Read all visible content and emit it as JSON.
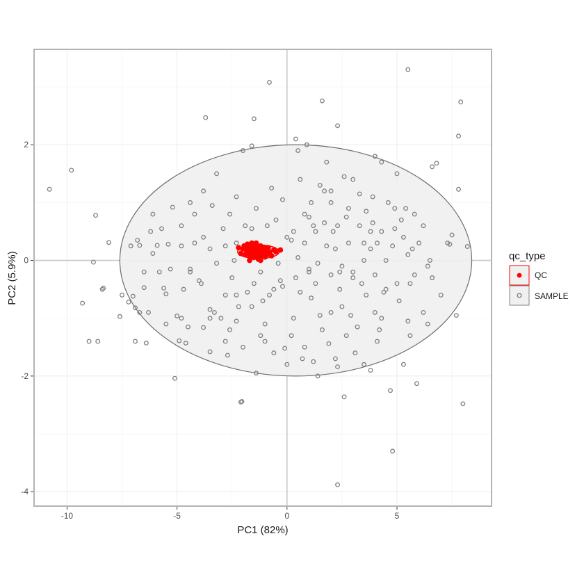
{
  "chart_data": {
    "type": "scatter",
    "xlabel": "PC1 (82%)",
    "ylabel": "PC2 (5.9%)",
    "xlim": [
      -11.5,
      9.3
    ],
    "ylim": [
      -4.25,
      3.65
    ],
    "x_ticks": [
      -10,
      -5,
      0,
      5
    ],
    "y_ticks": [
      -4,
      -2,
      0,
      2
    ],
    "grid": true,
    "legend_title": "qc_type",
    "legend_position": "right",
    "colors": {
      "qc": "#ff0000",
      "sample": "#808080",
      "ellipse_fill": "#f0f0f0",
      "ellipse_stroke": "#6e6e6e",
      "zero_line": "#c8c8c8"
    },
    "ellipses": [
      {
        "group": "SAMPLE",
        "cx": 0.4,
        "cy": 0.0,
        "rx": 8.0,
        "ry": 2.0
      },
      {
        "group": "QC",
        "cx": -1.3,
        "cy": 0.15,
        "rx": 0.95,
        "ry": 0.12
      }
    ],
    "series": [
      {
        "name": "QC",
        "points": [
          [
            -2.2,
            0.22
          ],
          [
            -2.1,
            0.12
          ],
          [
            -2.0,
            0.2
          ],
          [
            -1.95,
            0.25
          ],
          [
            -1.9,
            0.1
          ],
          [
            -1.85,
            0.18
          ],
          [
            -1.8,
            0.15
          ],
          [
            -1.75,
            0.24
          ],
          [
            -1.7,
            0.08
          ],
          [
            -1.65,
            0.2
          ],
          [
            -1.6,
            0.12
          ],
          [
            -1.55,
            0.26
          ],
          [
            -1.5,
            0.18
          ],
          [
            -1.5,
            0.05
          ],
          [
            -1.45,
            0.14
          ],
          [
            -1.4,
            0.22
          ],
          [
            -1.35,
            0.1
          ],
          [
            -1.3,
            0.2
          ],
          [
            -1.3,
            0.02
          ],
          [
            -1.25,
            0.16
          ],
          [
            -1.2,
            0.25
          ],
          [
            -1.2,
            0.08
          ],
          [
            -1.15,
            0.18
          ],
          [
            -1.1,
            0.12
          ],
          [
            -1.05,
            0.22
          ],
          [
            -1.0,
            0.06
          ],
          [
            -1.0,
            0.2
          ],
          [
            -0.95,
            0.15
          ],
          [
            -0.9,
            0.1
          ],
          [
            -0.85,
            0.22
          ],
          [
            -0.8,
            0.14
          ],
          [
            -0.7,
            0.08
          ],
          [
            -0.6,
            0.18
          ],
          [
            -0.5,
            0.15
          ],
          [
            -1.6,
            0.3
          ],
          [
            -1.4,
            0.3
          ],
          [
            -1.7,
            0.0
          ],
          [
            -1.2,
            0.0
          ],
          [
            -1.8,
            0.28
          ],
          [
            -0.3,
            0.18
          ]
        ]
      },
      {
        "name": "SAMPLE",
        "points": [
          [
            -10.8,
            1.23
          ],
          [
            -9.8,
            1.56
          ],
          [
            -8.7,
            0.78
          ],
          [
            -8.4,
            -0.5
          ],
          [
            -8.35,
            -0.48
          ],
          [
            -9.3,
            -0.74
          ],
          [
            -8.6,
            -1.4
          ],
          [
            -8.1,
            0.31
          ],
          [
            -8.8,
            -0.03
          ],
          [
            -7.6,
            -0.97
          ],
          [
            -7.5,
            -0.6
          ],
          [
            -7.2,
            -0.72
          ],
          [
            -7.0,
            -0.62
          ],
          [
            -6.9,
            -0.82
          ],
          [
            -6.9,
            -1.4
          ],
          [
            -6.8,
            0.35
          ],
          [
            -6.7,
            0.26
          ],
          [
            -6.5,
            -0.47
          ],
          [
            -6.4,
            -1.43
          ],
          [
            -6.3,
            -0.9
          ],
          [
            -6.1,
            0.12
          ],
          [
            -5.9,
            0.26
          ],
          [
            -5.7,
            0.55
          ],
          [
            -5.6,
            -0.48
          ],
          [
            -5.5,
            -0.58
          ],
          [
            -5.4,
            0.28
          ],
          [
            -5.2,
            0.92
          ],
          [
            -5.1,
            -2.04
          ],
          [
            -5.0,
            -0.96
          ],
          [
            -4.9,
            -1.39
          ],
          [
            -4.8,
            -1.0
          ],
          [
            -4.7,
            -0.5
          ],
          [
            -4.6,
            -1.43
          ],
          [
            -4.4,
            -0.15
          ],
          [
            -4.2,
            0.3
          ],
          [
            -4.0,
            -0.35
          ],
          [
            -3.8,
            -1.16
          ],
          [
            -3.7,
            2.47
          ],
          [
            -3.5,
            -1.58
          ],
          [
            -3.3,
            -0.9
          ],
          [
            -3.0,
            -1.0
          ],
          [
            -2.8,
            -1.4
          ],
          [
            -2.7,
            -1.64
          ],
          [
            -2.6,
            0.8
          ],
          [
            -2.3,
            -0.6
          ],
          [
            -2.2,
            -0.8
          ],
          [
            -2.1,
            -2.45
          ],
          [
            -2.05,
            -2.44
          ],
          [
            -1.8,
            0.28
          ],
          [
            -1.6,
            -0.8
          ],
          [
            -1.5,
            2.45
          ],
          [
            -1.6,
            1.98
          ],
          [
            -1.4,
            -1.95
          ],
          [
            -1.2,
            -0.2
          ],
          [
            -1.1,
            -0.7
          ],
          [
            -1.0,
            -1.4
          ],
          [
            -0.8,
            3.08
          ],
          [
            -0.6,
            -0.5
          ],
          [
            -0.3,
            -0.35
          ],
          [
            -0.1,
            -1.52
          ],
          [
            0.0,
            -1.8
          ],
          [
            0.2,
            0.35
          ],
          [
            0.4,
            2.1
          ],
          [
            0.6,
            -0.55
          ],
          [
            0.8,
            -1.5
          ],
          [
            1.0,
            -0.2
          ],
          [
            1.1,
            -0.65
          ],
          [
            1.2,
            -1.75
          ],
          [
            1.2,
            0.6
          ],
          [
            1.4,
            -2.0
          ],
          [
            1.6,
            2.76
          ],
          [
            1.7,
            1.2
          ],
          [
            1.9,
            -1.44
          ],
          [
            2.0,
            -0.9
          ],
          [
            2.1,
            0.5
          ],
          [
            2.3,
            2.33
          ],
          [
            2.3,
            -1.84
          ],
          [
            2.3,
            -3.88
          ],
          [
            2.5,
            -0.8
          ],
          [
            2.6,
            -2.36
          ],
          [
            2.8,
            0.9
          ],
          [
            3.0,
            -0.3
          ],
          [
            3.2,
            -1.15
          ],
          [
            3.3,
            1.15
          ],
          [
            3.5,
            -1.8
          ],
          [
            3.6,
            -0.6
          ],
          [
            3.8,
            0.5
          ],
          [
            4.0,
            -0.9
          ],
          [
            4.2,
            -1.2
          ],
          [
            4.3,
            1.7
          ],
          [
            4.5,
            -0.5
          ],
          [
            4.7,
            -2.25
          ],
          [
            4.8,
            -3.3
          ],
          [
            5.0,
            -0.4
          ],
          [
            5.2,
            0.7
          ],
          [
            5.3,
            -1.8
          ],
          [
            5.5,
            3.3
          ],
          [
            5.6,
            -0.4
          ],
          [
            5.9,
            -2.13
          ],
          [
            6.0,
            0.3
          ],
          [
            6.2,
            -0.9
          ],
          [
            6.4,
            -0.1
          ],
          [
            6.6,
            1.62
          ],
          [
            6.8,
            1.68
          ],
          [
            7.0,
            -0.6
          ],
          [
            7.3,
            0.3
          ],
          [
            7.5,
            0.44
          ],
          [
            7.7,
            -0.95
          ],
          [
            7.8,
            1.23
          ],
          [
            7.8,
            2.15
          ],
          [
            7.9,
            2.74
          ],
          [
            8.0,
            -2.48
          ],
          [
            8.2,
            0.24
          ],
          [
            7.4,
            0.28
          ],
          [
            -9.0,
            -1.4
          ],
          [
            -6.2,
            0.5
          ],
          [
            -3.2,
            1.5
          ],
          [
            -2.0,
            1.9
          ],
          [
            0.5,
            1.9
          ],
          [
            1.8,
            1.7
          ],
          [
            3.0,
            1.4
          ],
          [
            4.0,
            1.8
          ],
          [
            5.0,
            1.5
          ],
          [
            -5.8,
            -0.2
          ],
          [
            -4.2,
            0.8
          ],
          [
            -3.5,
            -0.85
          ],
          [
            -2.5,
            -0.3
          ],
          [
            -0.5,
            0.7
          ],
          [
            0.8,
            0.8
          ],
          [
            2.2,
            0.2
          ],
          [
            3.5,
            0.3
          ],
          [
            5.5,
            0.1
          ],
          [
            6.5,
            0.0
          ],
          [
            -6.5,
            -0.2
          ],
          [
            -7.1,
            0.25
          ],
          [
            -2.6,
            -1.2
          ],
          [
            -1.2,
            -1.3
          ],
          [
            0.2,
            -1.3
          ],
          [
            1.6,
            -1.2
          ],
          [
            2.7,
            -1.3
          ],
          [
            4.1,
            -1.4
          ],
          [
            5.6,
            -1.3
          ],
          [
            -3.9,
            -0.4
          ],
          [
            -2.8,
            -0.6
          ],
          [
            -1.8,
            -0.55
          ],
          [
            -0.8,
            -0.6
          ],
          [
            0.4,
            -0.3
          ],
          [
            1.3,
            -0.4
          ],
          [
            2.4,
            -0.5
          ],
          [
            3.4,
            -0.4
          ],
          [
            4.4,
            -0.55
          ],
          [
            5.1,
            -0.7
          ],
          [
            -4.8,
            0.6
          ],
          [
            -3.8,
            0.4
          ],
          [
            -2.9,
            0.55
          ],
          [
            -1.9,
            0.6
          ],
          [
            -0.9,
            0.6
          ],
          [
            0.3,
            0.5
          ],
          [
            1.3,
            0.5
          ],
          [
            2.3,
            0.6
          ],
          [
            3.3,
            0.6
          ],
          [
            4.3,
            0.5
          ],
          [
            5.3,
            0.4
          ],
          [
            6.2,
            0.6
          ],
          [
            -6.1,
            0.8
          ],
          [
            -4.4,
            1.0
          ],
          [
            -3.4,
            0.95
          ],
          [
            -1.4,
            0.9
          ],
          [
            -0.2,
            1.05
          ],
          [
            1.1,
            1.0
          ],
          [
            2.0,
            1.2
          ],
          [
            3.6,
            0.85
          ],
          [
            4.6,
            1.0
          ],
          [
            5.8,
            0.8
          ],
          [
            -3.8,
            1.2
          ],
          [
            -2.3,
            1.1
          ],
          [
            -0.7,
            1.25
          ],
          [
            0.6,
            1.4
          ],
          [
            1.5,
            1.3
          ],
          [
            2.6,
            1.45
          ],
          [
            3.9,
            1.1
          ],
          [
            4.9,
            0.9
          ],
          [
            -5.3,
            -0.15
          ],
          [
            -4.4,
            -0.2
          ],
          [
            -3.2,
            -0.05
          ],
          [
            -2.4,
            0.0
          ],
          [
            -0.4,
            -0.05
          ],
          [
            0.5,
            0.05
          ],
          [
            1.4,
            -0.05
          ],
          [
            2.5,
            -0.1
          ],
          [
            3.5,
            0.0
          ],
          [
            4.5,
            0.0
          ],
          [
            5.8,
            -0.25
          ],
          [
            6.6,
            -0.3
          ],
          [
            -6.7,
            -0.9
          ],
          [
            -5.5,
            -1.1
          ],
          [
            -4.5,
            -1.15
          ],
          [
            -3.5,
            -1.0
          ],
          [
            -2.3,
            -1.05
          ],
          [
            -1.0,
            -1.1
          ],
          [
            0.3,
            -1.0
          ],
          [
            1.5,
            -0.95
          ],
          [
            2.9,
            -0.95
          ],
          [
            4.3,
            -1.0
          ],
          [
            5.5,
            -1.05
          ],
          [
            6.4,
            -1.1
          ],
          [
            -2.0,
            -1.5
          ],
          [
            -0.6,
            -1.6
          ],
          [
            0.7,
            -1.7
          ],
          [
            2.2,
            -1.7
          ],
          [
            3.1,
            -1.6
          ],
          [
            3.8,
            -1.9
          ],
          [
            -1.5,
            -0.4
          ],
          [
            -0.2,
            -0.45
          ],
          [
            1.0,
            -0.15
          ],
          [
            2.0,
            -0.25
          ],
          [
            3.0,
            -0.2
          ],
          [
            4.0,
            -0.25
          ],
          [
            -2.8,
            0.25
          ],
          [
            -2.3,
            0.3
          ],
          [
            0.8,
            0.3
          ],
          [
            1.8,
            0.25
          ],
          [
            2.8,
            0.3
          ],
          [
            3.8,
            0.2
          ],
          [
            4.8,
            0.25
          ],
          [
            5.7,
            0.2
          ],
          [
            -4.8,
            0.25
          ],
          [
            -3.5,
            0.2
          ],
          [
            -1.6,
            0.55
          ],
          [
            0.0,
            0.4
          ],
          [
            1.0,
            0.75
          ],
          [
            1.7,
            0.65
          ],
          [
            2.7,
            0.75
          ],
          [
            3.9,
            0.65
          ],
          [
            4.9,
            0.55
          ],
          [
            5.4,
            0.9
          ],
          [
            0.9,
            2.0
          ],
          [
            2.0,
            1.0
          ],
          [
            4.1,
            0.3
          ],
          [
            2.4,
            -0.2
          ]
        ]
      }
    ]
  }
}
